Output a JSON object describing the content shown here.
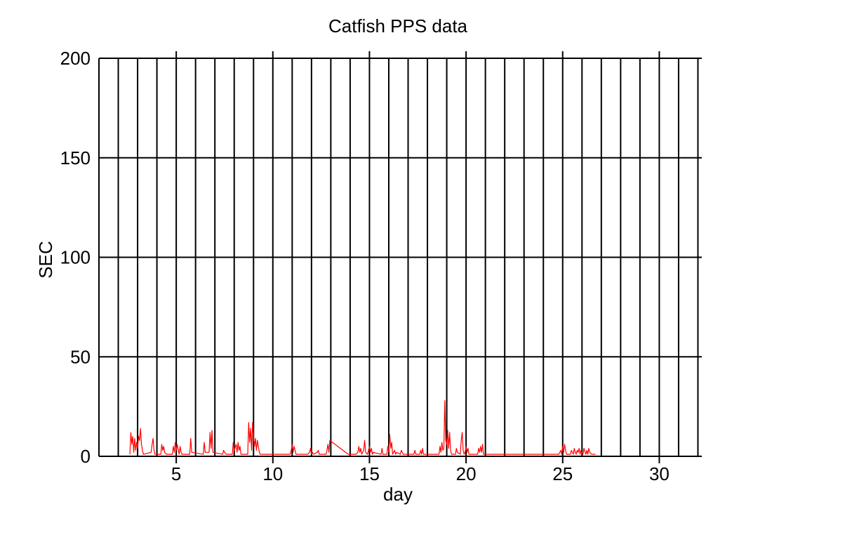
{
  "chart_data": {
    "type": "line",
    "title": "Catfish PPS data",
    "xlabel": "day",
    "ylabel": "SEC",
    "xlim": [
      1,
      32.2
    ],
    "ylim": [
      0,
      200
    ],
    "xticks": [
      5,
      10,
      15,
      20,
      25,
      30
    ],
    "xtick_labels": [
      "5",
      "10",
      "15",
      "20",
      "25",
      "30"
    ],
    "yticks": [
      0,
      50,
      100,
      150,
      200
    ],
    "ytick_labels": [
      "0",
      "50",
      "100",
      "150",
      "200"
    ],
    "vertical_gridlines_every_day": [
      2,
      32
    ],
    "horizontal_gridlines": [
      50,
      100,
      150,
      200
    ],
    "grid": true,
    "series": [
      {
        "color": "#ff0000",
        "x": [
          2.6,
          2.65,
          2.7,
          2.75,
          2.8,
          2.85,
          2.9,
          2.95,
          3.0,
          3.05,
          3.1,
          3.15,
          3.2,
          3.25,
          3.3,
          3.7,
          3.75,
          3.8,
          3.85,
          3.9,
          4.2,
          4.25,
          4.3,
          4.35,
          4.4,
          4.5,
          4.8,
          4.85,
          4.9,
          4.95,
          5.0,
          5.05,
          5.15,
          5.2,
          5.25,
          5.3,
          5.7,
          5.75,
          5.8,
          6.4,
          6.45,
          6.5,
          6.7,
          6.75,
          6.8,
          6.85,
          6.9,
          7.4,
          7.45,
          7.5,
          7.6,
          7.9,
          7.95,
          8.0,
          8.1,
          8.15,
          8.2,
          8.25,
          8.3,
          8.35,
          8.7,
          8.75,
          8.8,
          8.85,
          8.9,
          8.95,
          9.0,
          9.05,
          9.1,
          9.15,
          9.2,
          9.3,
          9.35,
          10.9,
          10.95,
          11.0,
          11.05,
          11.1,
          11.15,
          11.2,
          11.8,
          11.9,
          11.95,
          12.0,
          12.05,
          12.1,
          12.3,
          12.35,
          12.4,
          12.75,
          12.8,
          12.85,
          12.9,
          12.95,
          13.9,
          14.0,
          14.3,
          14.4,
          14.45,
          14.5,
          14.55,
          14.6,
          14.7,
          14.75,
          14.8,
          14.9,
          14.95,
          15.0,
          15.05,
          15.1,
          15.15,
          15.2,
          15.6,
          15.65,
          15.7,
          15.9,
          15.95,
          16.0,
          16.05,
          16.1,
          16.15,
          16.2,
          16.3,
          16.35,
          16.4,
          16.6,
          16.65,
          16.7,
          16.75,
          17.3,
          17.35,
          17.4,
          17.6,
          17.65,
          17.7,
          17.75,
          17.8,
          18.6,
          18.65,
          18.7,
          18.75,
          18.8,
          18.85,
          18.9,
          18.95,
          19.0,
          19.05,
          19.1,
          19.15,
          19.2,
          19.25,
          19.45,
          19.5,
          19.55,
          19.7,
          19.75,
          19.8,
          19.85,
          19.9,
          19.95,
          20.0,
          20.05,
          20.1,
          20.15,
          20.6,
          20.65,
          20.7,
          20.75,
          20.8,
          20.85,
          20.9,
          24.8,
          24.85,
          24.9,
          24.95,
          25.0,
          25.05,
          25.1,
          25.15,
          25.2,
          25.4,
          25.45,
          25.5,
          25.55,
          25.6,
          25.65,
          25.7,
          25.75,
          25.8,
          25.85,
          25.9,
          25.95,
          26.0,
          26.05,
          26.1,
          26.2,
          26.25,
          26.3,
          26.35,
          26.4,
          26.5,
          26.6,
          26.7
        ],
        "y": [
          1,
          12,
          6,
          10,
          2,
          9,
          3,
          7,
          4,
          10,
          8,
          14,
          6,
          3,
          1,
          2,
          6,
          9,
          3,
          1,
          1,
          6,
          3,
          5,
          2,
          1,
          1,
          5,
          2,
          7,
          3,
          6,
          1,
          5,
          2,
          1,
          1,
          9,
          2,
          1,
          7,
          2,
          2,
          12,
          4,
          13,
          2,
          1,
          3,
          2,
          1,
          1,
          7,
          3,
          6,
          2,
          7,
          3,
          5,
          1,
          1,
          17,
          7,
          14,
          3,
          17,
          10,
          5,
          9,
          3,
          8,
          2,
          1,
          1,
          3,
          6,
          2,
          5,
          3,
          1,
          1,
          2,
          4,
          1,
          2,
          1,
          2,
          3,
          1,
          1,
          3,
          6,
          2,
          8,
          1,
          1,
          1,
          2,
          5,
          2,
          4,
          1,
          3,
          8,
          2,
          1,
          3,
          5,
          2,
          4,
          1,
          2,
          1,
          4,
          1,
          1,
          5,
          2,
          11,
          4,
          7,
          1,
          3,
          1,
          2,
          1,
          3,
          2,
          1,
          1,
          3,
          1,
          1,
          3,
          1,
          4,
          1,
          1,
          5,
          2,
          7,
          3,
          4,
          28,
          8,
          6,
          13,
          4,
          12,
          3,
          1,
          1,
          4,
          2,
          1,
          8,
          12,
          3,
          1,
          2,
          5,
          2,
          4,
          1,
          1,
          4,
          2,
          5,
          2,
          6,
          1,
          1,
          2,
          3,
          1,
          5,
          2,
          6,
          3,
          1,
          1,
          3,
          2,
          1,
          4,
          2,
          1,
          3,
          2,
          4,
          1,
          3,
          2,
          1,
          4,
          1,
          3,
          1,
          4,
          2,
          1,
          1,
          1
        ]
      }
    ]
  }
}
